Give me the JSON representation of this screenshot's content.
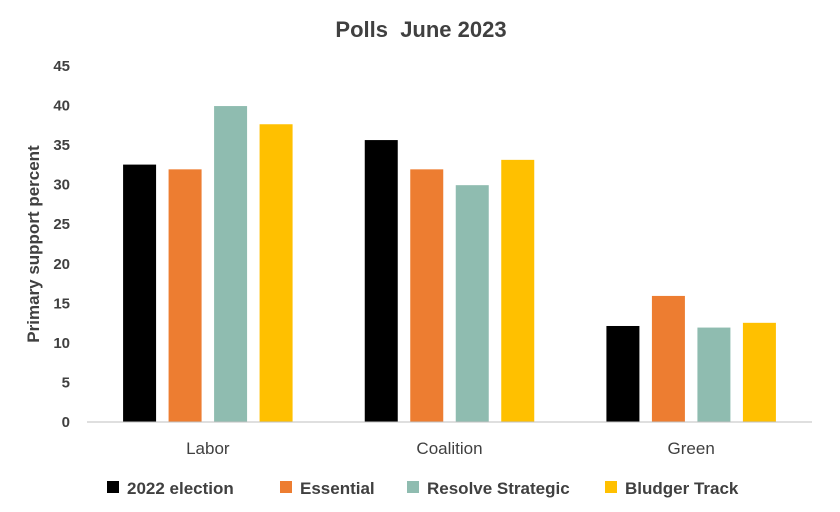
{
  "chart_data": {
    "type": "bar",
    "title": "Polls  June 2023",
    "xlabel": "",
    "ylabel": "Primary support percent",
    "ylim": [
      0,
      45
    ],
    "yticks": [
      0,
      5,
      10,
      15,
      20,
      25,
      30,
      35,
      40,
      45
    ],
    "grid": false,
    "legend_position": "bottom",
    "categories": [
      "Labor",
      "Coalition",
      "Green"
    ],
    "series": [
      {
        "name": "2022 election",
        "color": "#000000",
        "values": [
          32.6,
          35.7,
          12.2
        ]
      },
      {
        "name": "Essential",
        "color": "#ED7D31",
        "values": [
          32,
          32,
          16
        ]
      },
      {
        "name": "Resolve Strategic",
        "color": "#8FBCB0",
        "values": [
          40,
          30,
          12
        ]
      },
      {
        "name": "Bludger Track",
        "color": "#FFC000",
        "values": [
          37.7,
          33.2,
          12.6
        ]
      }
    ]
  }
}
